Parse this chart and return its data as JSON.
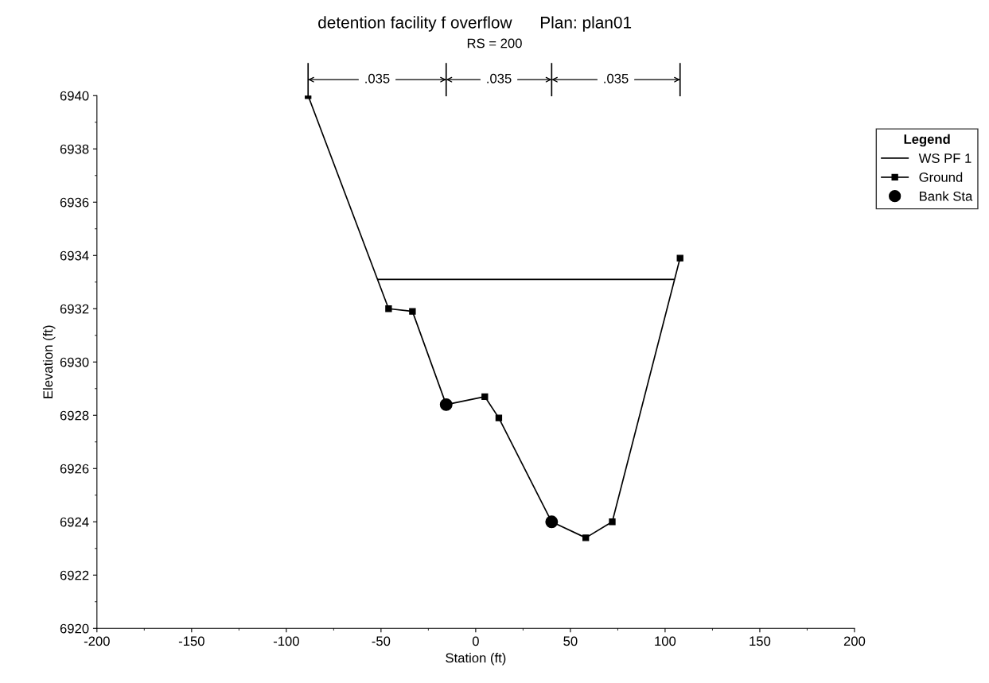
{
  "chart_data": {
    "type": "line",
    "title": "detention facility f overflow      Plan: plan01",
    "subtitle": "RS = 200",
    "xlabel": "Station (ft)",
    "ylabel": "Elevation (ft)",
    "legend_title": "Legend",
    "annotations": [
      ".035",
      ".035",
      ".035"
    ],
    "series": [
      {
        "name": "WS PF 1",
        "color": "#000000",
        "x": [
          -51.7,
          104.4
        ],
        "values": [
          6933.1,
          6933.1
        ],
        "marker": "none"
      },
      {
        "name": "Ground",
        "color": "#000000",
        "x": [
          -88.5,
          -46.0,
          -33.4,
          -15.6,
          4.8,
          12.2,
          40.1,
          58.1,
          72.1,
          107.9
        ],
        "values": [
          6940.0,
          6932.0,
          6931.9,
          6928.4,
          6928.7,
          6927.9,
          6924.0,
          6923.4,
          6924.0,
          6933.9
        ],
        "marker": "square"
      },
      {
        "name": "Bank Sta",
        "color": "#000000",
        "type": "scatter",
        "x": [
          -15.6,
          40.1
        ],
        "values": [
          6928.4,
          6924.0
        ],
        "marker": "circle"
      }
    ],
    "xlim": [
      -200,
      200
    ],
    "xticks": [
      -200,
      -150,
      -100,
      -50,
      0,
      50,
      100,
      150,
      200
    ],
    "ylim": [
      6920,
      6940
    ],
    "yticks": [
      6920,
      6922,
      6924,
      6926,
      6928,
      6930,
      6932,
      6934,
      6936,
      6938,
      6940
    ],
    "grid": false,
    "legend": "top right"
  }
}
